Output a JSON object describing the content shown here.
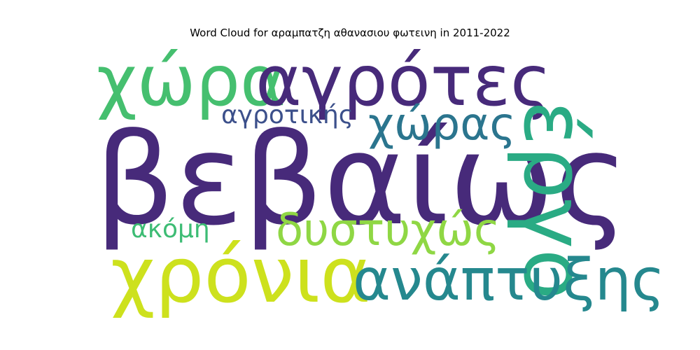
{
  "title": "Word Cloud for αραμπατζη αθανασιου φωτεινη in 2011-2022",
  "words": [
    {
      "text": "βεβαίως",
      "color": "#472a7a"
    },
    {
      "text": "χώρα",
      "color": "#45bf6f"
    },
    {
      "text": "αγρότες",
      "color": "#472a7a"
    },
    {
      "text": "έργο",
      "color": "#2aab84"
    },
    {
      "text": "χρόνια",
      "color": "#cde11d"
    },
    {
      "text": "ανάπτυξης",
      "color": "#25888e"
    },
    {
      "text": "χώρας",
      "color": "#2b758e"
    },
    {
      "text": "δυστυχώς",
      "color": "#8fd744"
    },
    {
      "text": "αγροτικής",
      "color": "#3c508b"
    },
    {
      "text": "ακόμη",
      "color": "#3dbc74"
    }
  ]
}
